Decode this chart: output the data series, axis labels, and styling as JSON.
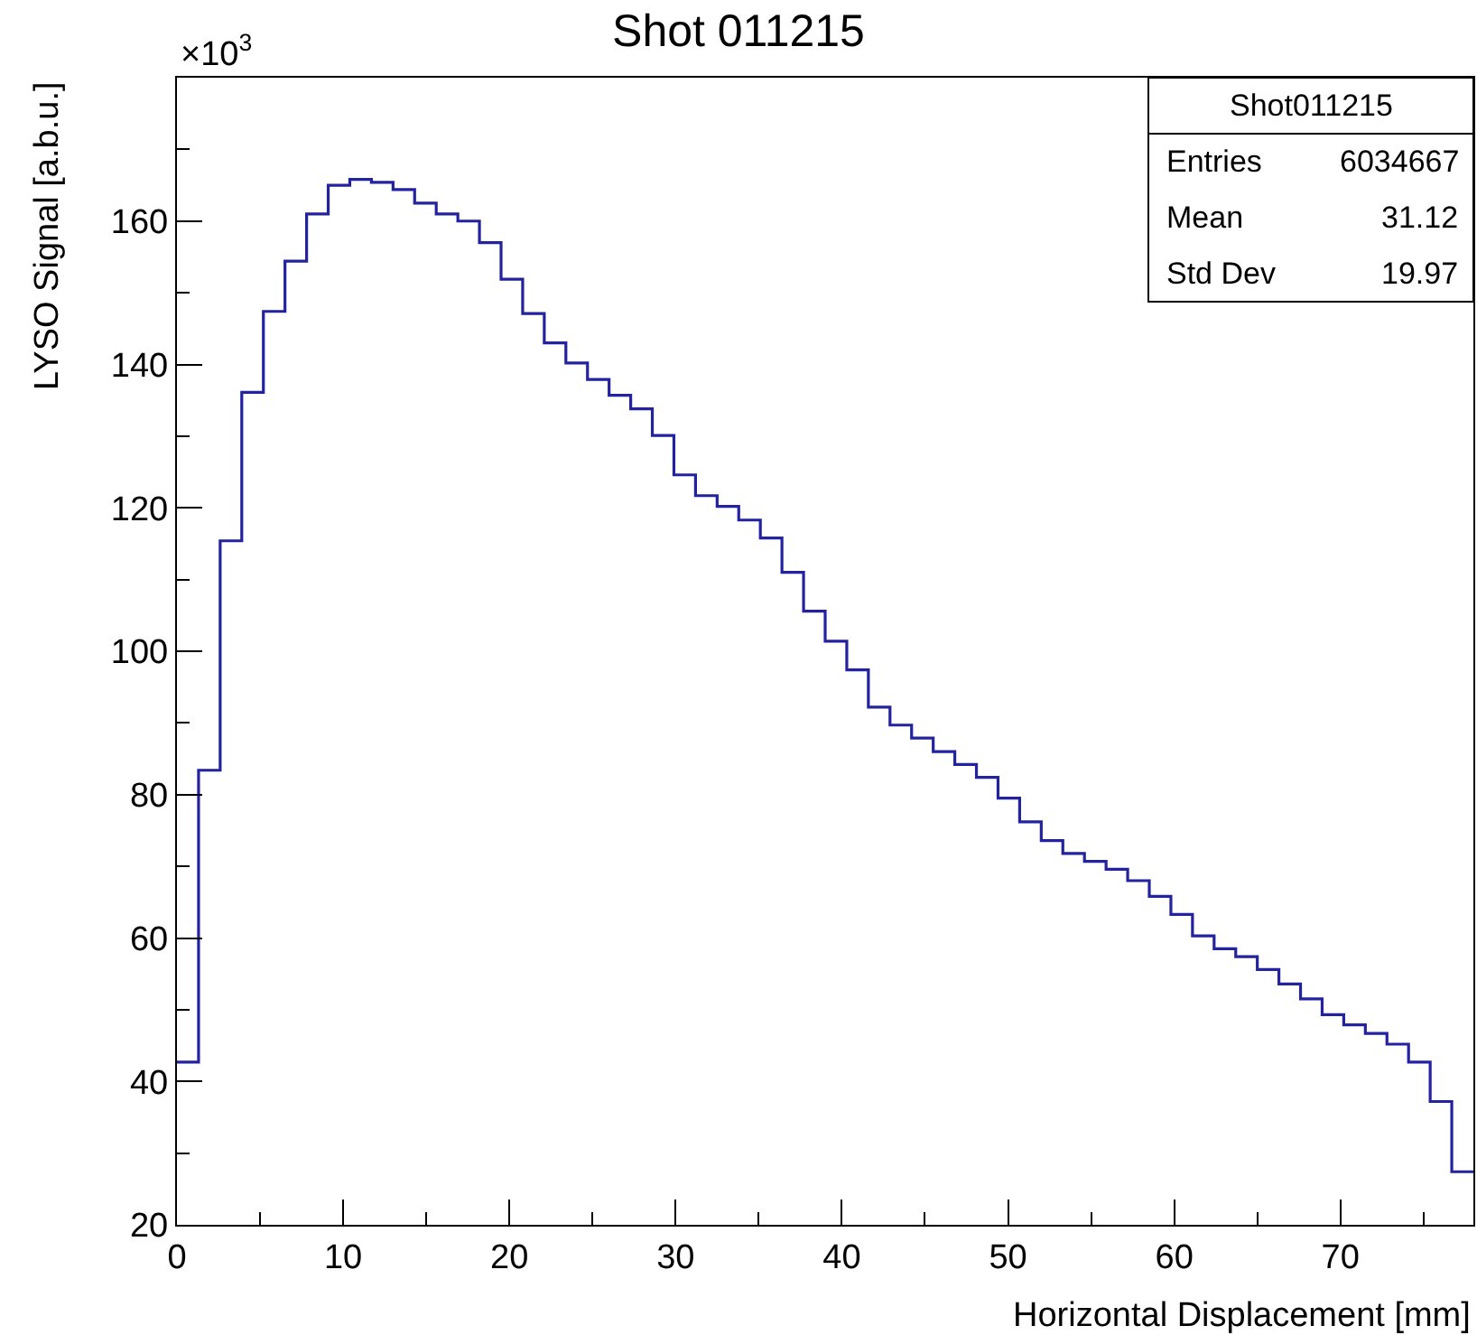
{
  "chart_data": {
    "type": "histogram",
    "title": "Shot 011215",
    "xlabel": "Horizontal Displacement [mm]",
    "ylabel": "LYSO Signal [a.b.u.]",
    "annotations": [
      "×10$^{3}$",
      "Shot011215",
      "Entries",
      "6034667",
      "Mean",
      "31.12",
      "Std Dev",
      "19.97"
    ],
    "bins": [
      0,
      1.3,
      2.6,
      3.9,
      5.2,
      6.5,
      7.8,
      9.1,
      10.4,
      11.7,
      13,
      14.3,
      15.6,
      16.9,
      18.2,
      19.5,
      20.8,
      22.1,
      23.4,
      24.7,
      26,
      27.3,
      28.6,
      29.9,
      31.2,
      32.5,
      33.8,
      35.1,
      36.4,
      37.7,
      39,
      40.3,
      41.6,
      42.9,
      44.2,
      45.5,
      46.8,
      48.1,
      49.4,
      50.7,
      52,
      53.3,
      54.6,
      55.9,
      57.2,
      58.5,
      59.8,
      61.1,
      62.4,
      63.7,
      65,
      66.3,
      67.6,
      68.9,
      70.2,
      71.5,
      72.8,
      74.1,
      75.4,
      76.7,
      78
    ],
    "values": [
      42.7,
      83.4,
      115.4,
      136.1,
      147.4,
      154.4,
      161.0,
      165.0,
      165.8,
      165.4,
      164.4,
      162.5,
      161.0,
      160.0,
      157.0,
      151.9,
      147.1,
      143.0,
      140.2,
      137.9,
      135.7,
      133.8,
      130.1,
      124.6,
      121.7,
      120.2,
      118.3,
      115.8,
      111.0,
      105.6,
      101.4,
      97.4,
      92.2,
      89.7,
      87.9,
      86.0,
      84.2,
      82.4,
      79.5,
      76.2,
      73.6,
      71.8,
      70.7,
      69.6,
      68.0,
      65.8,
      63.3,
      60.3,
      58.5,
      57.4,
      55.6,
      53.6,
      51.5,
      49.3,
      47.9,
      46.7,
      45.2,
      42.7,
      37.2,
      27.4
    ],
    "color": "#2323a0",
    "xlim": [
      0,
      78
    ],
    "xticks": [
      0,
      10,
      20,
      30,
      40,
      50,
      60,
      70
    ],
    "ylim": [
      20,
      180
    ],
    "yticks": [
      20,
      40,
      60,
      80,
      100,
      120,
      140,
      160
    ],
    "grid": false
  }
}
